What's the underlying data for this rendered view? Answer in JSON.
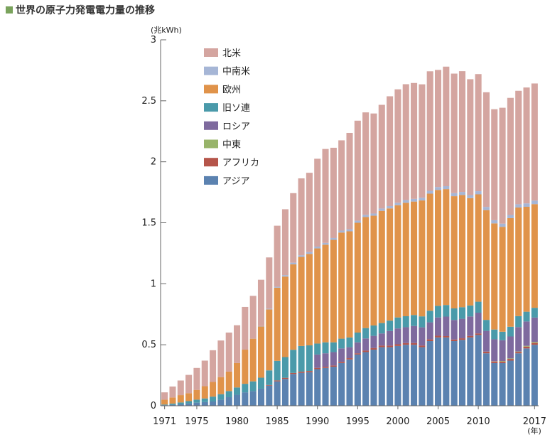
{
  "title": "世界の原子力発電電力量の推移",
  "colors": {
    "title_mark": "#7aa35c"
  },
  "chart_data": {
    "type": "bar",
    "stacked": true,
    "y_unit_label": "(兆kWh)",
    "x_unit_label": "(年)",
    "ylim": [
      0,
      3
    ],
    "y_ticks": [
      "0",
      "0.5",
      "1",
      "1.5",
      "2",
      "2.5",
      "3"
    ],
    "x_tick_labels": [
      "1971",
      "1975",
      "1980",
      "1985",
      "1990",
      "1995",
      "2000",
      "2005",
      "2010",
      "2017"
    ],
    "legend_position": "top-left",
    "categories": [
      1971,
      1972,
      1973,
      1974,
      1975,
      1976,
      1977,
      1978,
      1979,
      1980,
      1981,
      1982,
      1983,
      1984,
      1985,
      1986,
      1987,
      1988,
      1989,
      1990,
      1991,
      1992,
      1993,
      1994,
      1995,
      1996,
      1997,
      1998,
      1999,
      2000,
      2001,
      2002,
      2003,
      2004,
      2005,
      2006,
      2007,
      2008,
      2009,
      2010,
      2011,
      2012,
      2013,
      2014,
      2015,
      2016,
      2017
    ],
    "series": [
      {
        "name": "アジア",
        "color": "#5b82b0",
        "values": [
          0.005,
          0.008,
          0.012,
          0.018,
          0.025,
          0.03,
          0.035,
          0.05,
          0.07,
          0.09,
          0.11,
          0.12,
          0.14,
          0.165,
          0.2,
          0.22,
          0.26,
          0.27,
          0.275,
          0.3,
          0.31,
          0.32,
          0.35,
          0.38,
          0.42,
          0.44,
          0.46,
          0.48,
          0.48,
          0.49,
          0.5,
          0.5,
          0.48,
          0.53,
          0.56,
          0.56,
          0.53,
          0.54,
          0.56,
          0.58,
          0.43,
          0.35,
          0.35,
          0.37,
          0.43,
          0.47,
          0.5
        ]
      },
      {
        "name": "アフリカ",
        "color": "#b5554a",
        "values": [
          0,
          0,
          0,
          0,
          0,
          0,
          0,
          0,
          0,
          0,
          0,
          0,
          0,
          0.005,
          0.008,
          0.009,
          0.009,
          0.01,
          0.01,
          0.01,
          0.01,
          0.01,
          0.01,
          0.01,
          0.01,
          0.012,
          0.013,
          0.013,
          0.013,
          0.014,
          0.014,
          0.014,
          0.013,
          0.014,
          0.014,
          0.011,
          0.013,
          0.013,
          0.012,
          0.013,
          0.013,
          0.013,
          0.013,
          0.014,
          0.012,
          0.015,
          0.016
        ]
      },
      {
        "name": "中東",
        "color": "#98b46a",
        "values": [
          0,
          0,
          0,
          0,
          0,
          0,
          0,
          0,
          0,
          0,
          0,
          0,
          0,
          0,
          0,
          0,
          0,
          0,
          0,
          0,
          0,
          0,
          0,
          0,
          0,
          0,
          0,
          0,
          0,
          0,
          0,
          0,
          0,
          0,
          0,
          0,
          0,
          0,
          0,
          0,
          0.001,
          0.002,
          0.004,
          0.004,
          0.003,
          0.006,
          0.007
        ]
      },
      {
        "name": "ロシア",
        "color": "#7e6a9e",
        "values": [
          0,
          0,
          0,
          0,
          0,
          0,
          0,
          0,
          0,
          0,
          0,
          0,
          0,
          0,
          0,
          0,
          0,
          0,
          0,
          0.11,
          0.11,
          0.11,
          0.11,
          0.09,
          0.09,
          0.1,
          0.1,
          0.1,
          0.12,
          0.13,
          0.13,
          0.14,
          0.15,
          0.14,
          0.15,
          0.16,
          0.16,
          0.16,
          0.16,
          0.17,
          0.17,
          0.18,
          0.17,
          0.18,
          0.2,
          0.2,
          0.2
        ]
      },
      {
        "name": "旧ソ連",
        "color": "#4a9aaa",
        "values": [
          0.005,
          0.01,
          0.015,
          0.02,
          0.025,
          0.03,
          0.04,
          0.045,
          0.05,
          0.06,
          0.07,
          0.08,
          0.09,
          0.12,
          0.16,
          0.17,
          0.19,
          0.21,
          0.21,
          0.09,
          0.09,
          0.08,
          0.08,
          0.08,
          0.08,
          0.085,
          0.085,
          0.085,
          0.085,
          0.09,
          0.09,
          0.09,
          0.09,
          0.095,
          0.095,
          0.095,
          0.095,
          0.095,
          0.09,
          0.09,
          0.09,
          0.08,
          0.07,
          0.08,
          0.09,
          0.08,
          0.08
        ]
      },
      {
        "name": "欧州",
        "color": "#e0934a",
        "values": [
          0.04,
          0.05,
          0.06,
          0.065,
          0.08,
          0.1,
          0.12,
          0.14,
          0.16,
          0.2,
          0.28,
          0.35,
          0.42,
          0.5,
          0.6,
          0.66,
          0.7,
          0.73,
          0.75,
          0.78,
          0.8,
          0.84,
          0.87,
          0.87,
          0.9,
          0.91,
          0.9,
          0.92,
          0.92,
          0.92,
          0.93,
          0.93,
          0.95,
          0.96,
          0.95,
          0.95,
          0.92,
          0.92,
          0.88,
          0.88,
          0.9,
          0.87,
          0.86,
          0.89,
          0.89,
          0.86,
          0.85
        ]
      },
      {
        "name": "中南米",
        "color": "#a6b6d6",
        "values": [
          0,
          0,
          0,
          0,
          0,
          0,
          0,
          0,
          0,
          0,
          0,
          0.001,
          0.003,
          0.006,
          0.008,
          0.012,
          0.014,
          0.014,
          0.015,
          0.015,
          0.015,
          0.015,
          0.016,
          0.017,
          0.017,
          0.018,
          0.018,
          0.019,
          0.019,
          0.02,
          0.022,
          0.022,
          0.022,
          0.023,
          0.024,
          0.024,
          0.025,
          0.025,
          0.025,
          0.026,
          0.026,
          0.026,
          0.026,
          0.026,
          0.027,
          0.028,
          0.029
        ]
      },
      {
        "name": "北米",
        "color": "#d4a5a0",
        "values": [
          0.06,
          0.09,
          0.12,
          0.15,
          0.18,
          0.21,
          0.26,
          0.3,
          0.32,
          0.31,
          0.35,
          0.35,
          0.38,
          0.42,
          0.5,
          0.54,
          0.57,
          0.63,
          0.65,
          0.72,
          0.77,
          0.74,
          0.74,
          0.79,
          0.82,
          0.84,
          0.82,
          0.85,
          0.9,
          0.93,
          0.95,
          0.95,
          0.93,
          0.98,
          0.96,
          0.98,
          0.98,
          0.99,
          0.95,
          0.96,
          0.94,
          0.91,
          0.95,
          0.96,
          0.93,
          0.95,
          0.96
        ]
      }
    ]
  }
}
